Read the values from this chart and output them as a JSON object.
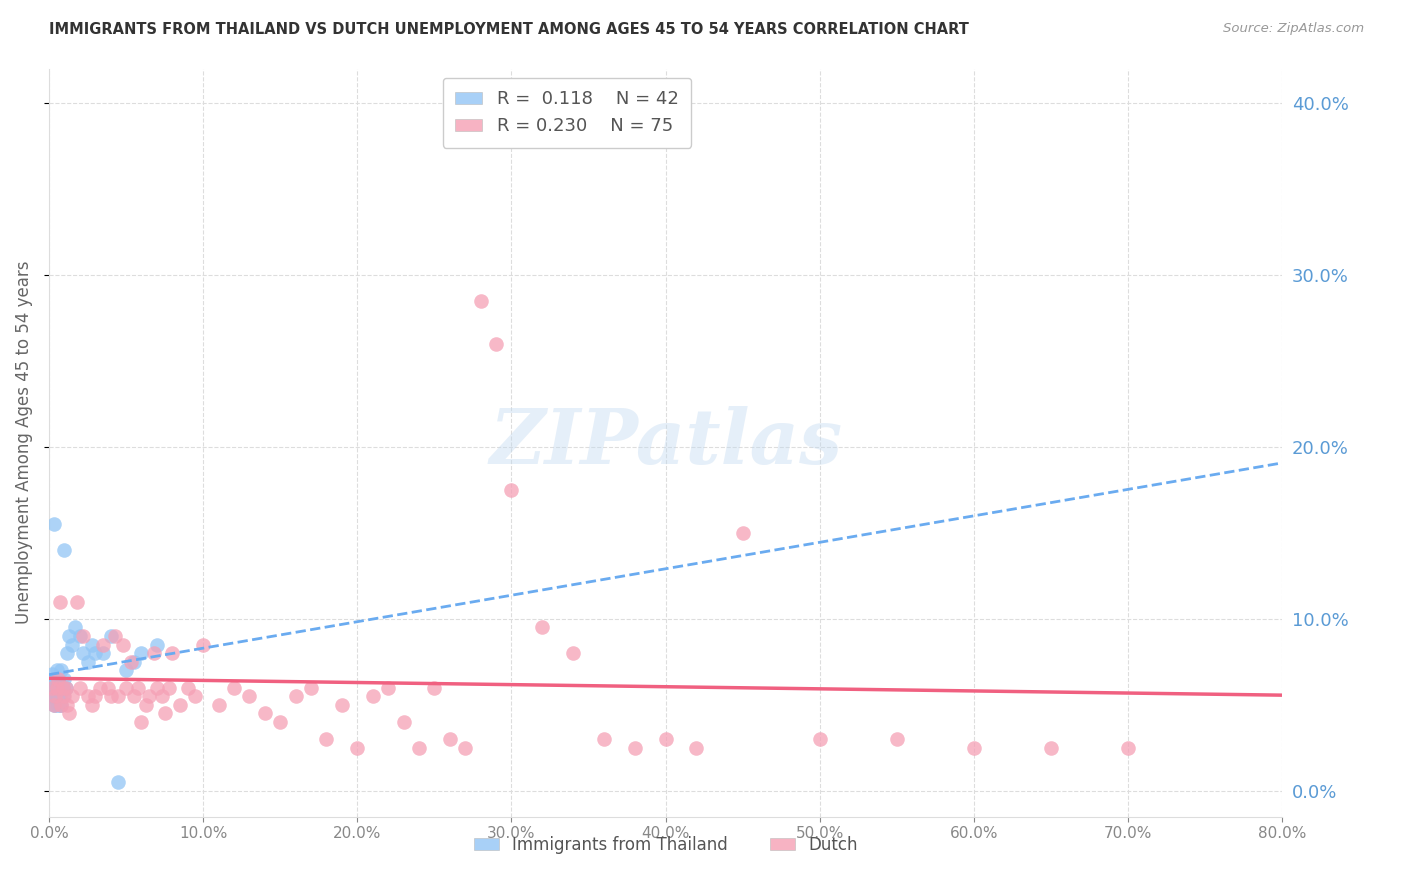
{
  "title": "IMMIGRANTS FROM THAILAND VS DUTCH UNEMPLOYMENT AMONG AGES 45 TO 54 YEARS CORRELATION CHART",
  "source": "Source: ZipAtlas.com",
  "ylabel": "Unemployment Among Ages 45 to 54 years",
  "xlim": [
    0.0,
    0.8
  ],
  "ylim": [
    -0.015,
    0.42
  ],
  "yticks": [
    0.0,
    0.1,
    0.2,
    0.3,
    0.4
  ],
  "xticks": [
    0.0,
    0.1,
    0.2,
    0.3,
    0.4,
    0.5,
    0.6,
    0.7,
    0.8
  ],
  "blue_color": "#92c5f5",
  "pink_color": "#f5a0b5",
  "blue_line_color": "#6aabf0",
  "pink_line_color": "#f06080",
  "legend_R_blue": "0.118",
  "legend_N_blue": "42",
  "legend_R_pink": "0.230",
  "legend_N_pink": "75",
  "legend_label_blue": "Immigrants from Thailand",
  "legend_label_pink": "Dutch",
  "watermark": "ZIPatlas",
  "title_color": "#333333",
  "source_color": "#999999",
  "ylabel_color": "#666666",
  "tick_color": "#888888",
  "grid_color": "#dddddd",
  "right_tick_color": "#5b9bd5",
  "blue_scatter_x": [
    0.001,
    0.002,
    0.002,
    0.003,
    0.003,
    0.003,
    0.004,
    0.004,
    0.004,
    0.005,
    0.005,
    0.005,
    0.006,
    0.006,
    0.006,
    0.007,
    0.007,
    0.007,
    0.008,
    0.008,
    0.008,
    0.009,
    0.009,
    0.01,
    0.01,
    0.011,
    0.012,
    0.013,
    0.015,
    0.017,
    0.02,
    0.022,
    0.025,
    0.028,
    0.03,
    0.035,
    0.04,
    0.045,
    0.05,
    0.055,
    0.06,
    0.07
  ],
  "blue_scatter_y": [
    0.06,
    0.068,
    0.055,
    0.155,
    0.065,
    0.05,
    0.06,
    0.055,
    0.05,
    0.06,
    0.07,
    0.055,
    0.05,
    0.065,
    0.055,
    0.06,
    0.05,
    0.055,
    0.06,
    0.05,
    0.07,
    0.06,
    0.055,
    0.14,
    0.065,
    0.06,
    0.08,
    0.09,
    0.085,
    0.095,
    0.09,
    0.08,
    0.075,
    0.085,
    0.08,
    0.08,
    0.09,
    0.005,
    0.07,
    0.075,
    0.08,
    0.085
  ],
  "pink_scatter_x": [
    0.002,
    0.003,
    0.004,
    0.005,
    0.006,
    0.007,
    0.008,
    0.009,
    0.01,
    0.011,
    0.012,
    0.013,
    0.015,
    0.018,
    0.02,
    0.022,
    0.025,
    0.028,
    0.03,
    0.033,
    0.035,
    0.038,
    0.04,
    0.043,
    0.045,
    0.048,
    0.05,
    0.053,
    0.055,
    0.058,
    0.06,
    0.063,
    0.065,
    0.068,
    0.07,
    0.073,
    0.075,
    0.078,
    0.08,
    0.085,
    0.09,
    0.095,
    0.1,
    0.11,
    0.12,
    0.13,
    0.14,
    0.15,
    0.16,
    0.17,
    0.18,
    0.19,
    0.2,
    0.21,
    0.22,
    0.23,
    0.24,
    0.25,
    0.26,
    0.27,
    0.28,
    0.29,
    0.3,
    0.32,
    0.34,
    0.36,
    0.38,
    0.4,
    0.42,
    0.45,
    0.5,
    0.55,
    0.6,
    0.65,
    0.7
  ],
  "pink_scatter_y": [
    0.06,
    0.05,
    0.055,
    0.06,
    0.065,
    0.11,
    0.05,
    0.06,
    0.055,
    0.06,
    0.05,
    0.045,
    0.055,
    0.11,
    0.06,
    0.09,
    0.055,
    0.05,
    0.055,
    0.06,
    0.085,
    0.06,
    0.055,
    0.09,
    0.055,
    0.085,
    0.06,
    0.075,
    0.055,
    0.06,
    0.04,
    0.05,
    0.055,
    0.08,
    0.06,
    0.055,
    0.045,
    0.06,
    0.08,
    0.05,
    0.06,
    0.055,
    0.085,
    0.05,
    0.06,
    0.055,
    0.045,
    0.04,
    0.055,
    0.06,
    0.03,
    0.05,
    0.025,
    0.055,
    0.06,
    0.04,
    0.025,
    0.06,
    0.03,
    0.025,
    0.285,
    0.26,
    0.175,
    0.095,
    0.08,
    0.03,
    0.025,
    0.03,
    0.025,
    0.15,
    0.03,
    0.03,
    0.025,
    0.025,
    0.025
  ]
}
